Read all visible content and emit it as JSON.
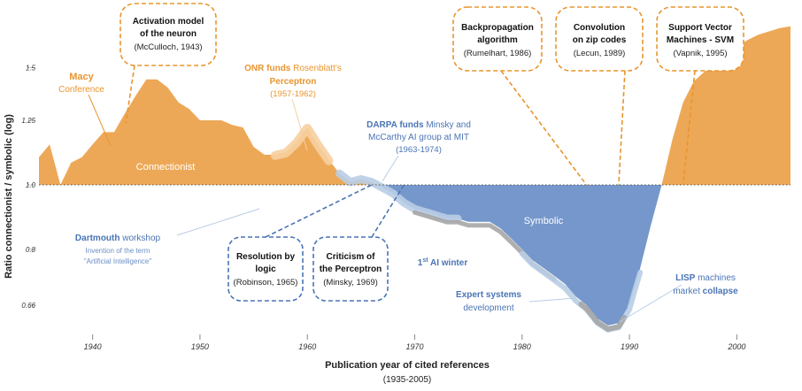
{
  "chart_data": {
    "type": "area",
    "xlabel": "Publication year of cited references",
    "xlabel_sub": "(1935-2005)",
    "ylabel": "Ratio connectionist / symbolic (log)",
    "y_scale": "log",
    "xlim": [
      1935,
      2005
    ],
    "ylim": [
      0.6,
      1.75
    ],
    "baseline": 1.0,
    "x_ticks": [
      "1940",
      "1950",
      "1960",
      "1970",
      "1980",
      "1990",
      "2000"
    ],
    "x_tick_values": [
      1940,
      1950,
      1960,
      1970,
      1980,
      1990,
      2000
    ],
    "y_ticks": [
      "1.5",
      "1.25",
      "1.0",
      "0.8",
      "0.66"
    ],
    "y_tick_values": [
      1.5,
      1.25,
      1.0,
      0.8,
      0.66
    ],
    "region_labels": {
      "above": "Connectionist",
      "below": "Symbolic"
    },
    "colors": {
      "connectionist": "#eda857",
      "connectionist_highlight": "#f6cfa0",
      "symbolic": "#7597cb",
      "symbolic_highlight": "#b9cde6",
      "winter": "#a6a6a6",
      "orange_text": "#e8952f",
      "blue_text": "#4a74b5",
      "blue_light_text": "#6d8fc4"
    },
    "series": [
      {
        "x": [
          1935,
          1936,
          1937,
          1938,
          1939,
          1940,
          1941,
          1942,
          1943,
          1944,
          1945,
          1946,
          1947,
          1948,
          1949,
          1950,
          1951,
          1952,
          1953,
          1954,
          1955,
          1956,
          1957,
          1958,
          1959,
          1960,
          1961,
          1962,
          1963,
          1964,
          1965,
          1966,
          1967,
          1968,
          1969,
          1970,
          1971,
          1972,
          1973,
          1974,
          1975,
          1976,
          1977,
          1978,
          1979,
          1980,
          1981,
          1982,
          1983,
          1984,
          1985,
          1986,
          1987,
          1988,
          1989,
          1990,
          1991,
          1992,
          1993,
          1994,
          1995,
          1996,
          1997,
          1998,
          1999,
          2000,
          2001,
          2002,
          2003,
          2004,
          2005
        ],
        "y": [
          1.1,
          1.15,
          1.0,
          1.08,
          1.1,
          1.15,
          1.2,
          1.2,
          1.28,
          1.36,
          1.44,
          1.44,
          1.4,
          1.33,
          1.3,
          1.25,
          1.25,
          1.25,
          1.23,
          1.22,
          1.14,
          1.11,
          1.11,
          1.12,
          1.16,
          1.22,
          1.15,
          1.09,
          1.04,
          1.01,
          1.02,
          1.01,
          0.99,
          0.97,
          0.94,
          0.92,
          0.91,
          0.9,
          0.89,
          0.89,
          0.88,
          0.88,
          0.88,
          0.86,
          0.83,
          0.8,
          0.77,
          0.75,
          0.73,
          0.71,
          0.68,
          0.66,
          0.63,
          0.615,
          0.62,
          0.66,
          0.75,
          0.87,
          1.0,
          1.17,
          1.33,
          1.43,
          1.48,
          1.54,
          1.58,
          1.61,
          1.65,
          1.68,
          1.7,
          1.72,
          1.73
        ]
      }
    ],
    "periods": [
      {
        "name": "ONR perceptron",
        "x": [
          1957,
          1962
        ]
      },
      {
        "name": "DARPA",
        "x": [
          1963,
          1974
        ]
      },
      {
        "name": "1st AI winter",
        "x": [
          1970,
          1983
        ]
      },
      {
        "name": "expert systems",
        "x": [
          1980,
          1991
        ]
      }
    ],
    "annotations": {
      "macy": {
        "title": "Macy",
        "sub": "Conference"
      },
      "activation": {
        "l1": "Activation model",
        "l2": "of the neuron",
        "l3": "(McCulloch, 1943)"
      },
      "onr": {
        "l1a": "ONR funds",
        "l1b": " Rosenblatt's",
        "l2": "Perceptron",
        "l3": "(1957-1962)"
      },
      "darpa": {
        "l1a": "DARPA funds",
        "l1b": " Minsky and",
        "l2": "McCarthy AI group at MIT",
        "l3": "(1963-1974)"
      },
      "backprop": {
        "l1": "Backpropagation",
        "l2": "algorithm",
        "l3": "(Rumelhart, 1986)"
      },
      "convolution": {
        "l1": "Convolution",
        "l2": "on zip codes",
        "l3": "(Lecun, 1989)"
      },
      "svm": {
        "l1": "Support Vector",
        "l2": "Machines - SVM",
        "l3": "(Vapnik, 1995)"
      },
      "dartmouth": {
        "l1a": "Dartmouth",
        "l1b": " workshop",
        "l2": "Invention of the term",
        "l3": "\"Artificial Intelligence\""
      },
      "resolution": {
        "l1": "Resolution by",
        "l2": "logic",
        "l3": "(Robinson, 1965)"
      },
      "criticism": {
        "l1": "Criticism of",
        "l2": "the Perceptron",
        "l3": "(Minsky, 1969)"
      },
      "winter": {
        "pre": "1",
        "sup": "st",
        "post": " AI winter"
      },
      "expert": {
        "l1": "Expert systems",
        "l2": "development"
      },
      "lisp": {
        "l1a": "LISP",
        "l1b": " machines",
        "l2a": "market ",
        "l2b": "collapse"
      }
    }
  }
}
